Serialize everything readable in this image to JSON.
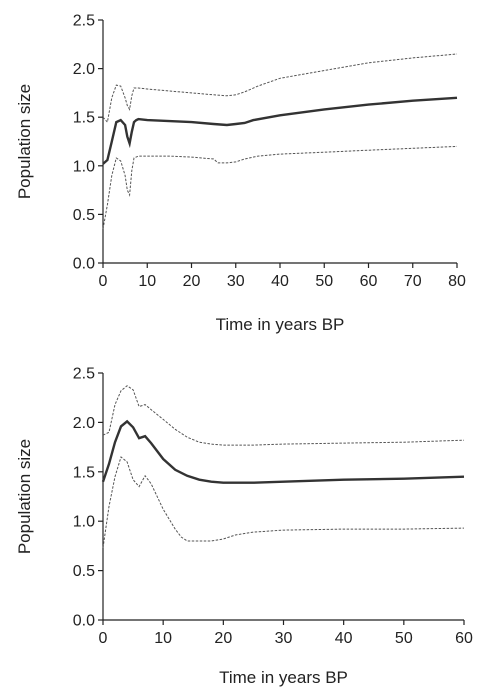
{
  "chart_data": [
    {
      "type": "line",
      "xlabel": "Time in years BP",
      "ylabel": "Population size",
      "xlim": [
        0,
        80
      ],
      "ylim": [
        0,
        2.5
      ],
      "xticks": [
        "0",
        "10",
        "20",
        "30",
        "40",
        "50",
        "60",
        "70",
        "80"
      ],
      "yticks": [
        "0.0",
        "0.5",
        "1.0",
        "1.5",
        "2.0",
        "2.5"
      ],
      "grid": false,
      "series": [
        {
          "style": "solid",
          "x": [
            0,
            1,
            2,
            3,
            4,
            5,
            5.5,
            6,
            6.5,
            7,
            7.5,
            8,
            10,
            15,
            20,
            25,
            28,
            30,
            32,
            34,
            40,
            50,
            60,
            70,
            80
          ],
          "y": [
            1.02,
            1.06,
            1.25,
            1.45,
            1.47,
            1.42,
            1.3,
            1.23,
            1.35,
            1.45,
            1.47,
            1.48,
            1.47,
            1.46,
            1.45,
            1.43,
            1.42,
            1.43,
            1.44,
            1.47,
            1.52,
            1.58,
            1.63,
            1.67,
            1.7
          ]
        },
        {
          "style": "dashed",
          "x": [
            0,
            1,
            2,
            3,
            4,
            5,
            5.5,
            6,
            6.5,
            7,
            8,
            10,
            15,
            20,
            25,
            28,
            30,
            32,
            35,
            40,
            50,
            60,
            70,
            80
          ],
          "y": [
            1.5,
            1.45,
            1.7,
            1.83,
            1.82,
            1.7,
            1.62,
            1.58,
            1.72,
            1.8,
            1.8,
            1.79,
            1.77,
            1.75,
            1.73,
            1.72,
            1.73,
            1.76,
            1.82,
            1.9,
            1.98,
            2.06,
            2.11,
            2.15
          ]
        },
        {
          "style": "dashed",
          "x": [
            0,
            1,
            2,
            3,
            4,
            5,
            5.5,
            6,
            6.5,
            7,
            8,
            10,
            15,
            20,
            25,
            26,
            28,
            30,
            32,
            35,
            40,
            50,
            60,
            70,
            80
          ],
          "y": [
            0.35,
            0.6,
            0.9,
            1.08,
            1.05,
            0.9,
            0.75,
            0.7,
            0.95,
            1.08,
            1.1,
            1.1,
            1.1,
            1.09,
            1.07,
            1.03,
            1.03,
            1.04,
            1.07,
            1.1,
            1.12,
            1.14,
            1.16,
            1.18,
            1.2
          ]
        }
      ]
    },
    {
      "type": "line",
      "xlabel": "Time in years BP",
      "ylabel": "Population size",
      "xlim": [
        0,
        60
      ],
      "ylim": [
        0,
        2.5
      ],
      "xticks": [
        "0",
        "10",
        "20",
        "30",
        "40",
        "50",
        "60"
      ],
      "yticks": [
        "0.0",
        "0.5",
        "1.0",
        "1.5",
        "2.0",
        "2.5"
      ],
      "grid": false,
      "series": [
        {
          "style": "solid",
          "x": [
            0,
            1,
            2,
            3,
            4,
            5,
            6,
            7,
            8,
            10,
            12,
            14,
            16,
            18,
            20,
            25,
            30,
            40,
            50,
            60
          ],
          "y": [
            1.4,
            1.58,
            1.8,
            1.96,
            2.01,
            1.95,
            1.84,
            1.86,
            1.79,
            1.63,
            1.52,
            1.46,
            1.42,
            1.4,
            1.39,
            1.39,
            1.4,
            1.42,
            1.43,
            1.45
          ]
        },
        {
          "style": "dashed",
          "x": [
            0,
            1,
            2,
            3,
            4,
            5,
            6,
            7,
            8,
            10,
            12,
            14,
            16,
            18,
            20,
            25,
            30,
            40,
            50,
            60
          ],
          "y": [
            1.87,
            1.9,
            2.18,
            2.32,
            2.37,
            2.33,
            2.16,
            2.18,
            2.13,
            2.03,
            1.93,
            1.85,
            1.8,
            1.78,
            1.77,
            1.77,
            1.78,
            1.79,
            1.8,
            1.82
          ]
        },
        {
          "style": "dashed",
          "x": [
            0,
            1,
            2,
            3,
            4,
            5,
            6,
            7,
            8,
            10,
            12,
            13,
            14,
            16,
            18,
            20,
            22,
            25,
            30,
            40,
            50,
            60
          ],
          "y": [
            0.73,
            1.15,
            1.45,
            1.65,
            1.6,
            1.42,
            1.35,
            1.46,
            1.38,
            1.12,
            0.92,
            0.84,
            0.8,
            0.8,
            0.8,
            0.82,
            0.86,
            0.89,
            0.91,
            0.92,
            0.92,
            0.93
          ]
        }
      ]
    }
  ]
}
